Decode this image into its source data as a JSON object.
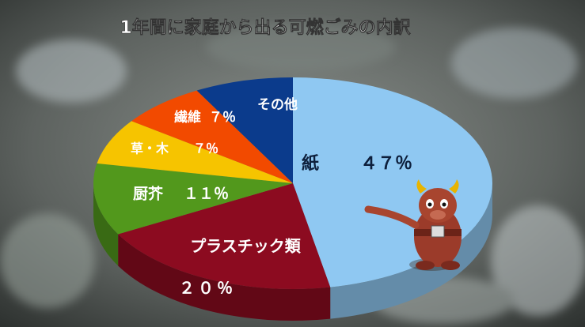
{
  "chart_data": {
    "type": "pie3d",
    "title": "1年間に家庭から出る可燃ごみの内訳",
    "categories": [
      "紙",
      "プラスチック類",
      "厨芥",
      "草・木",
      "繊維",
      "その他"
    ],
    "values": [
      47,
      20,
      11,
      7,
      7,
      8
    ],
    "value_labels": [
      "４７％",
      "２０％",
      "１１％",
      "７％",
      "７％",
      null
    ],
    "colors": [
      "#8fc8f2",
      "#8c0b20",
      "#52981c",
      "#f6c400",
      "#f24a00",
      "#0b3b8c"
    ]
  }
}
